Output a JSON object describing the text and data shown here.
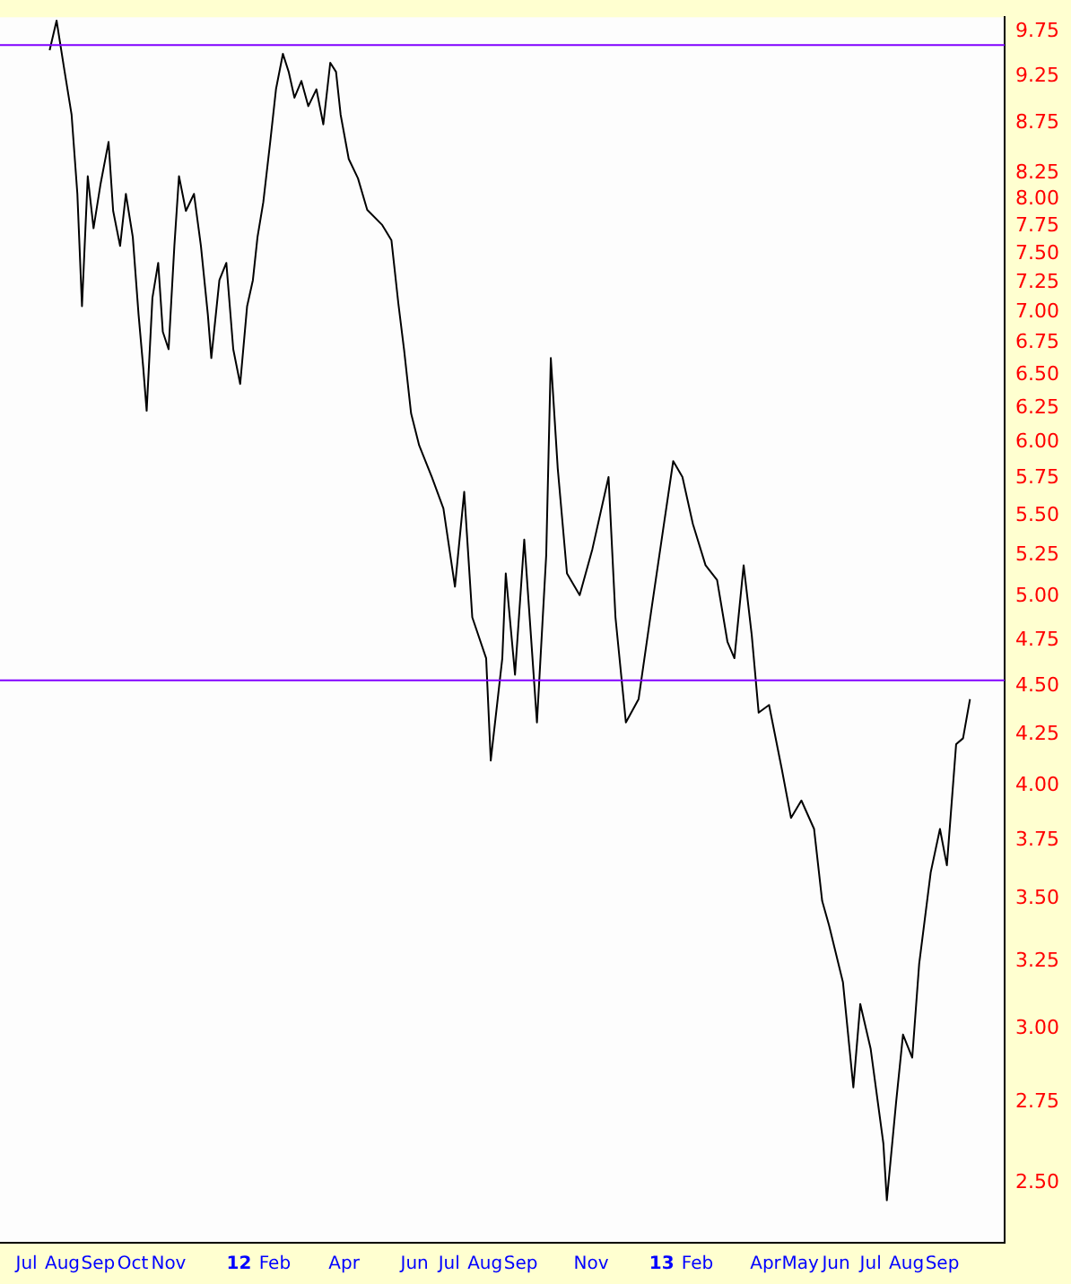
{
  "chart_data": {
    "type": "line",
    "log": "y",
    "marker": "none",
    "line_style": "solid",
    "x": [
      "2011-07-21",
      "2011-07-27",
      "2011-08-03",
      "2011-08-09",
      "2011-08-14",
      "2011-08-18",
      "2011-08-23",
      "2011-08-28",
      "2011-09-03",
      "2011-09-10",
      "2011-09-14",
      "2011-09-20",
      "2011-09-25",
      "2011-10-01",
      "2011-10-06",
      "2011-10-10",
      "2011-10-13",
      "2011-10-18",
      "2011-10-23",
      "2011-10-27",
      "2011-11-01",
      "2011-11-06",
      "2011-11-10",
      "2011-11-16",
      "2011-11-23",
      "2011-11-29",
      "2011-12-05",
      "2011-12-08",
      "2011-12-15",
      "2011-12-21",
      "2011-12-27",
      "2012-01-02",
      "2012-01-08",
      "2012-01-13",
      "2012-01-17",
      "2012-01-22",
      "2012-01-28",
      "2012-02-02",
      "2012-02-08",
      "2012-02-13",
      "2012-02-18",
      "2012-02-24",
      "2012-03-01",
      "2012-03-08",
      "2012-03-14",
      "2012-03-20",
      "2012-03-25",
      "2012-03-29",
      "2012-04-05",
      "2012-04-13",
      "2012-04-21",
      "2012-05-04",
      "2012-05-12",
      "2012-05-18",
      "2012-05-23",
      "2012-05-29",
      "2012-06-05",
      "2012-06-16",
      "2012-06-26",
      "2012-07-06",
      "2012-07-14",
      "2012-07-21",
      "2012-08-02",
      "2012-08-06",
      "2012-08-16",
      "2012-08-19",
      "2012-08-27",
      "2012-09-04",
      "2012-09-15",
      "2012-09-23",
      "2012-09-27",
      "2012-10-03",
      "2012-10-11",
      "2012-10-22",
      "2012-11-02",
      "2012-11-16",
      "2012-11-22",
      "2012-12-01",
      "2012-12-12",
      "2012-12-23",
      "2013-01-02",
      "2013-01-11",
      "2013-01-19",
      "2013-01-28",
      "2013-02-08",
      "2013-02-18",
      "2013-02-27",
      "2013-03-05",
      "2013-03-13",
      "2013-03-20",
      "2013-03-26",
      "2013-04-04",
      "2013-04-15",
      "2013-04-23",
      "2013-05-02",
      "2013-05-13",
      "2013-05-20",
      "2013-05-26",
      "2013-06-07",
      "2013-06-16",
      "2013-06-22",
      "2013-07-01",
      "2013-07-12",
      "2013-07-15",
      "2013-07-23",
      "2013-07-29",
      "2013-08-06",
      "2013-08-12",
      "2013-08-22",
      "2013-08-30",
      "2013-09-05",
      "2013-09-13",
      "2013-09-19",
      "2013-09-25"
    ],
    "series": [
      {
        "color": "#000000",
        "values": [
          9.54,
          9.88,
          9.3,
          8.84,
          8.05,
          7.05,
          8.22,
          7.73,
          8.14,
          8.56,
          7.89,
          7.57,
          8.05,
          7.65,
          6.98,
          6.56,
          6.23,
          7.12,
          7.42,
          6.84,
          6.7,
          7.57,
          8.22,
          7.89,
          8.05,
          7.57,
          6.98,
          6.63,
          7.27,
          7.42,
          6.7,
          6.43,
          7.05,
          7.27,
          7.65,
          7.97,
          8.56,
          9.11,
          9.5,
          9.3,
          9.02,
          9.2,
          8.93,
          9.11,
          8.74,
          9.4,
          9.3,
          8.84,
          8.39,
          8.2,
          7.9,
          7.76,
          7.62,
          7.07,
          6.69,
          6.21,
          5.98,
          5.76,
          5.55,
          5.06,
          5.66,
          4.88,
          4.65,
          4.12,
          4.65,
          5.14,
          4.56,
          5.35,
          4.31,
          5.25,
          6.63,
          5.82,
          5.14,
          5.01,
          5.29,
          5.76,
          4.88,
          4.31,
          4.43,
          4.92,
          5.4,
          5.87,
          5.76,
          5.45,
          5.19,
          5.1,
          4.74,
          4.65,
          5.19,
          4.78,
          4.36,
          4.4,
          4.08,
          3.85,
          3.93,
          3.8,
          3.49,
          3.39,
          3.17,
          2.8,
          3.09,
          2.93,
          2.62,
          2.45,
          2.75,
          2.98,
          2.9,
          3.24,
          3.61,
          3.8,
          3.64,
          4.2,
          4.23,
          4.43
        ]
      }
    ],
    "xlim": [
      "2011-06-08",
      "2013-10-25"
    ],
    "xticks": [
      {
        "value": "2011-07-01",
        "label": "Jul"
      },
      {
        "value": "2011-08-01",
        "label": "Aug"
      },
      {
        "value": "2011-09-01",
        "label": "Sep"
      },
      {
        "value": "2011-10-01",
        "label": "Oct"
      },
      {
        "value": "2011-11-01",
        "label": "Nov"
      },
      {
        "value": "2012-01-01",
        "label": "12"
      },
      {
        "value": "2012-02-01",
        "label": "Feb"
      },
      {
        "value": "2012-04-01",
        "label": "Apr"
      },
      {
        "value": "2012-06-01",
        "label": "Jun"
      },
      {
        "value": "2012-07-01",
        "label": "Jul"
      },
      {
        "value": "2012-08-01",
        "label": "Aug"
      },
      {
        "value": "2012-09-01",
        "label": "Sep"
      },
      {
        "value": "2012-11-01",
        "label": "Nov"
      },
      {
        "value": "2013-01-01",
        "label": "13"
      },
      {
        "value": "2013-02-01",
        "label": "Feb"
      },
      {
        "value": "2013-04-01",
        "label": "Apr"
      },
      {
        "value": "2013-05-01",
        "label": "May"
      },
      {
        "value": "2013-06-01",
        "label": "Jun"
      },
      {
        "value": "2013-07-01",
        "label": "Jul"
      },
      {
        "value": "2013-08-01",
        "label": "Aug"
      },
      {
        "value": "2013-09-01",
        "label": "Sep"
      }
    ],
    "ylim": [
      2.33,
      9.92
    ],
    "yticks": [
      {
        "value": 2.5,
        "label": "2.50"
      },
      {
        "value": 2.75,
        "label": "2.75"
      },
      {
        "value": 3,
        "label": "3.00"
      },
      {
        "value": 3.25,
        "label": "3.25"
      },
      {
        "value": 3.5,
        "label": "3.50"
      },
      {
        "value": 3.75,
        "label": "3.75"
      },
      {
        "value": 4,
        "label": "4.00"
      },
      {
        "value": 4.25,
        "label": "4.25"
      },
      {
        "value": 4.5,
        "label": "4.50"
      },
      {
        "value": 4.75,
        "label": "4.75"
      },
      {
        "value": 5,
        "label": "5.00"
      },
      {
        "value": 5.25,
        "label": "5.25"
      },
      {
        "value": 5.5,
        "label": "5.50"
      },
      {
        "value": 5.75,
        "label": "5.75"
      },
      {
        "value": 6,
        "label": "6.00"
      },
      {
        "value": 6.25,
        "label": "6.25"
      },
      {
        "value": 6.5,
        "label": "6.50"
      },
      {
        "value": 6.75,
        "label": "6.75"
      },
      {
        "value": 7,
        "label": "7.00"
      },
      {
        "value": 7.25,
        "label": "7.25"
      },
      {
        "value": 7.5,
        "label": "7.50"
      },
      {
        "value": 7.75,
        "label": "7.75"
      },
      {
        "value": 8,
        "label": "8.00"
      },
      {
        "value": 8.25,
        "label": "8.25"
      },
      {
        "value": 8.75,
        "label": "8.75"
      },
      {
        "value": 9.25,
        "label": "9.25"
      },
      {
        "value": 9.75,
        "label": "9.75"
      }
    ],
    "ref_lines": [
      {
        "axis": "y",
        "value": 9.6,
        "color": "#8000ff"
      },
      {
        "axis": "y",
        "value": 4.53,
        "color": "#8000ff"
      }
    ]
  }
}
